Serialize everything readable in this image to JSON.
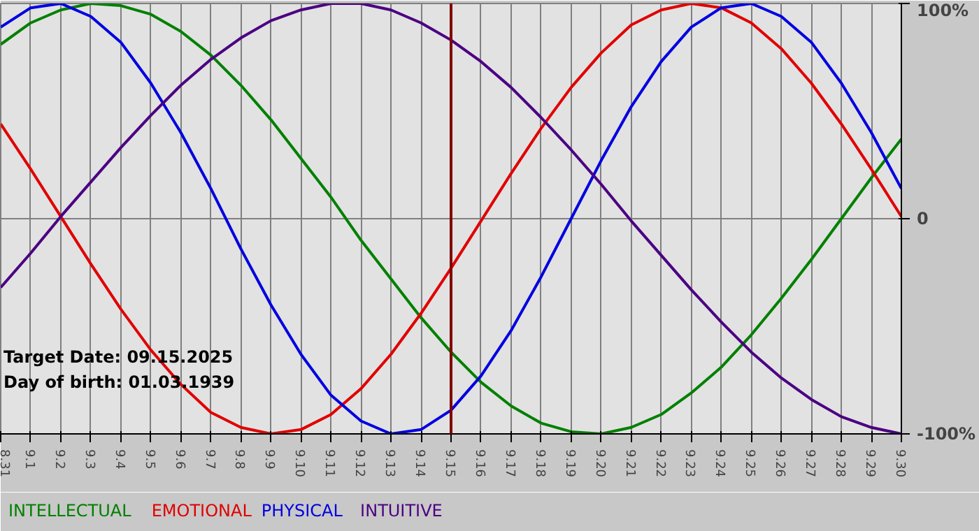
{
  "chart_data": {
    "type": "line",
    "categories": [
      "8.31",
      "9.1",
      "9.2",
      "9.3",
      "9.4",
      "9.5",
      "9.6",
      "9.7",
      "9.8",
      "9.9",
      "9.10",
      "9.11",
      "9.12",
      "9.13",
      "9.14",
      "9.15",
      "9.16",
      "9.17",
      "9.18",
      "9.19",
      "9.20",
      "9.21",
      "9.22",
      "9.23",
      "9.24",
      "9.25",
      "9.26",
      "9.27",
      "9.28",
      "9.29",
      "9.30"
    ],
    "series": [
      {
        "name": "INTELLECTUAL",
        "color": "#008000",
        "values": [
          81,
          91,
          97,
          100,
          99,
          95,
          87,
          76,
          62,
          46,
          28,
          10,
          -10,
          -28,
          -46,
          -62,
          -76,
          -87,
          -95,
          -99,
          -100,
          -97,
          -91,
          -81,
          -69,
          -54,
          -37,
          -19,
          0,
          19,
          37
        ]
      },
      {
        "name": "EMOTIONAL",
        "color": "#e00000",
        "values": [
          44,
          23,
          1,
          -21,
          -42,
          -61,
          -77,
          -90,
          -97,
          -100,
          -98,
          -91,
          -79,
          -63,
          -44,
          -23,
          -1,
          21,
          42,
          61,
          77,
          90,
          97,
          100,
          98,
          91,
          79,
          63,
          44,
          23,
          1
        ]
      },
      {
        "name": "PHYSICAL",
        "color": "#0000e0",
        "values": [
          89,
          98,
          100,
          94,
          82,
          63,
          40,
          14,
          -14,
          -40,
          -63,
          -82,
          -94,
          -100,
          -98,
          -89,
          -73,
          -52,
          -27,
          0,
          27,
          52,
          73,
          89,
          98,
          100,
          94,
          82,
          63,
          40,
          14
        ]
      },
      {
        "name": "INTUITIVE",
        "color": "#4b0082",
        "values": [
          -32,
          -16,
          1,
          17,
          33,
          48,
          62,
          74,
          84,
          92,
          97,
          100,
          100,
          97,
          91,
          83,
          73,
          61,
          47,
          32,
          16,
          -1,
          -17,
          -33,
          -48,
          -62,
          -74,
          -84,
          -92,
          -97,
          -100
        ]
      }
    ],
    "ylim": [
      -100,
      100
    ],
    "yticks": [
      {
        "value": -100,
        "label": "-100%"
      },
      0,
      {
        "value": 100,
        "label": "100%"
      }
    ],
    "grid": true,
    "ref_lines": [
      {
        "axis": "x",
        "value": "9.15",
        "color": "#800000"
      }
    ],
    "annotations": [
      "Target Date: 09.15.2025",
      "Day of birth: 01.03.1939"
    ]
  }
}
